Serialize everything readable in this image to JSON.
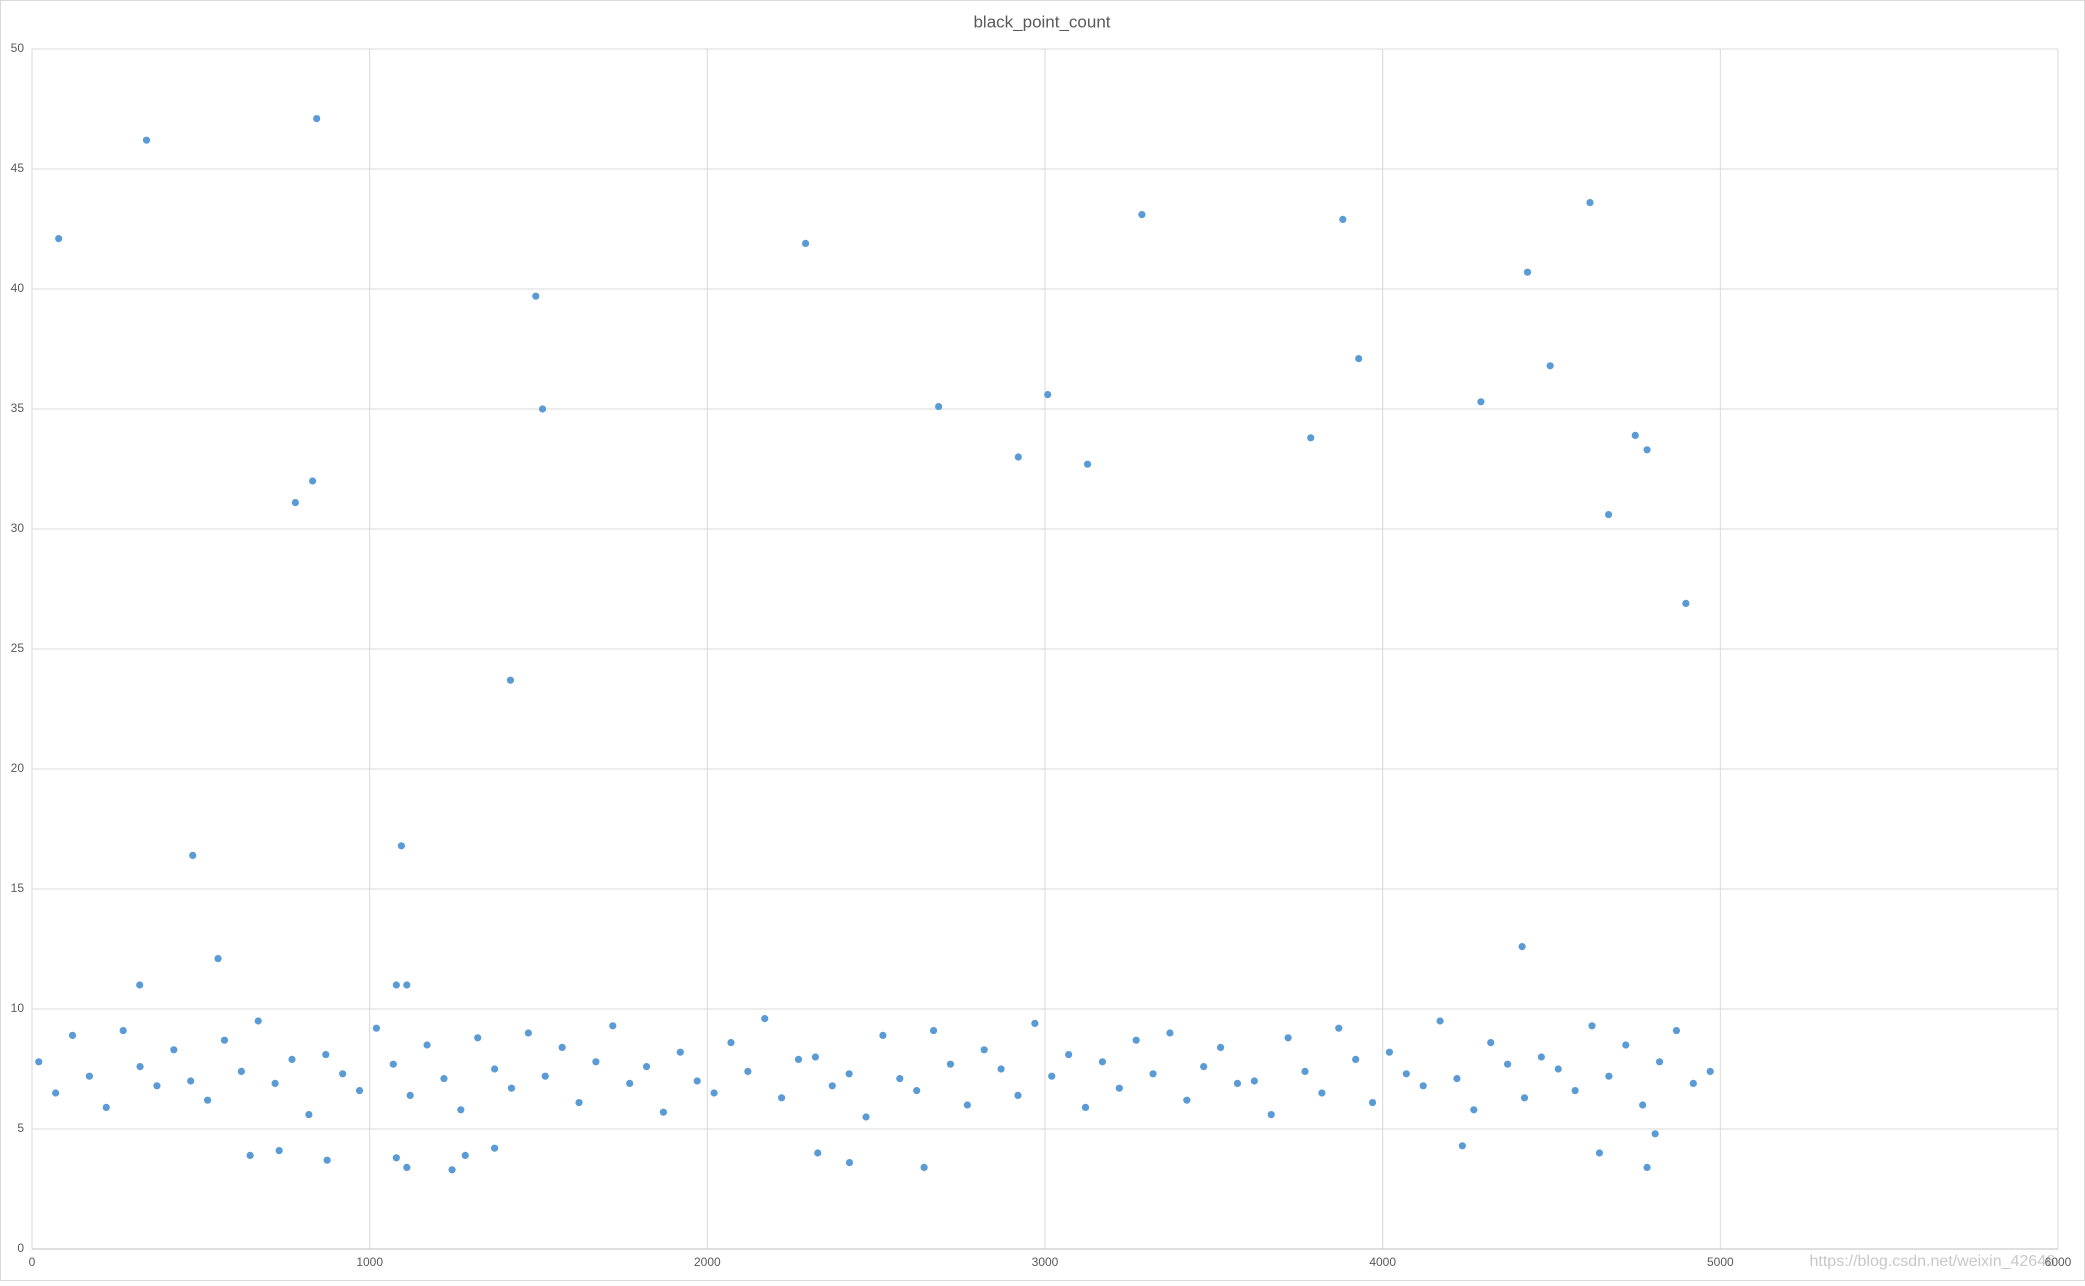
{
  "chart_data": {
    "type": "scatter",
    "title": "black_point_count",
    "color": "#5b9bd5",
    "grid": true,
    "watermark": "https://blog.csdn.net/weixin_42646",
    "xlim": [
      0,
      6000
    ],
    "xticks": [
      0,
      1000,
      2000,
      3000,
      4000,
      5000,
      6000
    ],
    "ylim": [
      0,
      50
    ],
    "yticks": [
      0,
      5,
      10,
      15,
      20,
      25,
      30,
      35,
      40,
      45,
      50
    ],
    "x": [
      79,
      339,
      843,
      476,
      551,
      780,
      831,
      1417,
      1094,
      1492,
      1512,
      2291,
      2685,
      2921,
      3008,
      3126,
      3287,
      3787,
      3882,
      3929,
      4291,
      4429,
      4496,
      4614,
      4669,
      4748,
      4783,
      4898,
      4413,
      646,
      732,
      874,
      1079,
      1110,
      1244,
      1283,
      1370,
      2327,
      2421,
      2642,
      4236,
      4642,
      4783,
      4807,
      319,
      1079,
      1110,
      20,
      70,
      120,
      170,
      220,
      270,
      320,
      370,
      420,
      470,
      520,
      570,
      620,
      670,
      720,
      770,
      820,
      870,
      920,
      970,
      1020,
      1070,
      1120,
      1170,
      1220,
      1270,
      1320,
      1370,
      1420,
      1470,
      1520,
      1570,
      1620,
      1670,
      1720,
      1770,
      1820,
      1870,
      1920,
      1970,
      2020,
      2070,
      2120,
      2170,
      2220,
      2270,
      2320,
      2370,
      2420,
      2470,
      2520,
      2570,
      2620,
      2670,
      2720,
      2770,
      2820,
      2870,
      2920,
      2970,
      3020,
      3070,
      3120,
      3170,
      3220,
      3270,
      3320,
      3370,
      3420,
      3470,
      3520,
      3570,
      3620,
      3670,
      3720,
      3770,
      3820,
      3870,
      3920,
      3970,
      4020,
      4070,
      4120,
      4170,
      4220,
      4270,
      4320,
      4370,
      4420,
      4470,
      4520,
      4570,
      4620,
      4670,
      4720,
      4770,
      4820,
      4870,
      4920,
      4970
    ],
    "values": [
      42.1,
      46.2,
      47.1,
      16.4,
      12.1,
      31.1,
      32.0,
      23.7,
      16.8,
      39.7,
      35.0,
      41.9,
      35.1,
      33.0,
      35.6,
      32.7,
      43.1,
      33.8,
      42.9,
      37.1,
      35.3,
      40.7,
      36.8,
      43.6,
      30.6,
      33.9,
      33.3,
      26.9,
      12.6,
      3.9,
      4.1,
      3.7,
      3.8,
      3.4,
      3.3,
      3.9,
      4.2,
      4.0,
      3.6,
      3.4,
      4.3,
      4.0,
      3.4,
      4.8,
      11.0,
      11.0,
      11.0,
      7.8,
      6.5,
      8.9,
      7.2,
      5.9,
      9.1,
      7.6,
      6.8,
      8.3,
      7.0,
      6.2,
      8.7,
      7.4,
      9.5,
      6.9,
      7.9,
      5.6,
      8.1,
      7.3,
      6.6,
      9.2,
      7.7,
      6.4,
      8.5,
      7.1,
      5.8,
      8.8,
      7.5,
      6.7,
      9.0,
      7.2,
      8.4,
      6.1,
      7.8,
      9.3,
      6.9,
      7.6,
      5.7,
      8.2,
      7.0,
      6.5,
      8.6,
      7.4,
      9.6,
      6.3,
      7.9,
      8.0,
      6.8,
      7.3,
      5.5,
      8.9,
      7.1,
      6.6,
      9.1,
      7.7,
      6.0,
      8.3,
      7.5,
      6.4,
      9.4,
      7.2,
      8.1,
      5.9,
      7.8,
      6.7,
      8.7,
      7.3,
      9.0,
      6.2,
      7.6,
      8.4,
      6.9,
      7.0,
      5.6,
      8.8,
      7.4,
      6.5,
      9.2,
      7.9,
      6.1,
      8.2,
      7.3,
      6.8,
      9.5,
      7.1,
      5.8,
      8.6,
      7.7,
      6.3,
      8.0,
      7.5,
      6.6,
      9.3,
      7.2,
      8.5,
      6.0,
      7.8,
      9.1,
      6.9,
      7.4
    ]
  }
}
